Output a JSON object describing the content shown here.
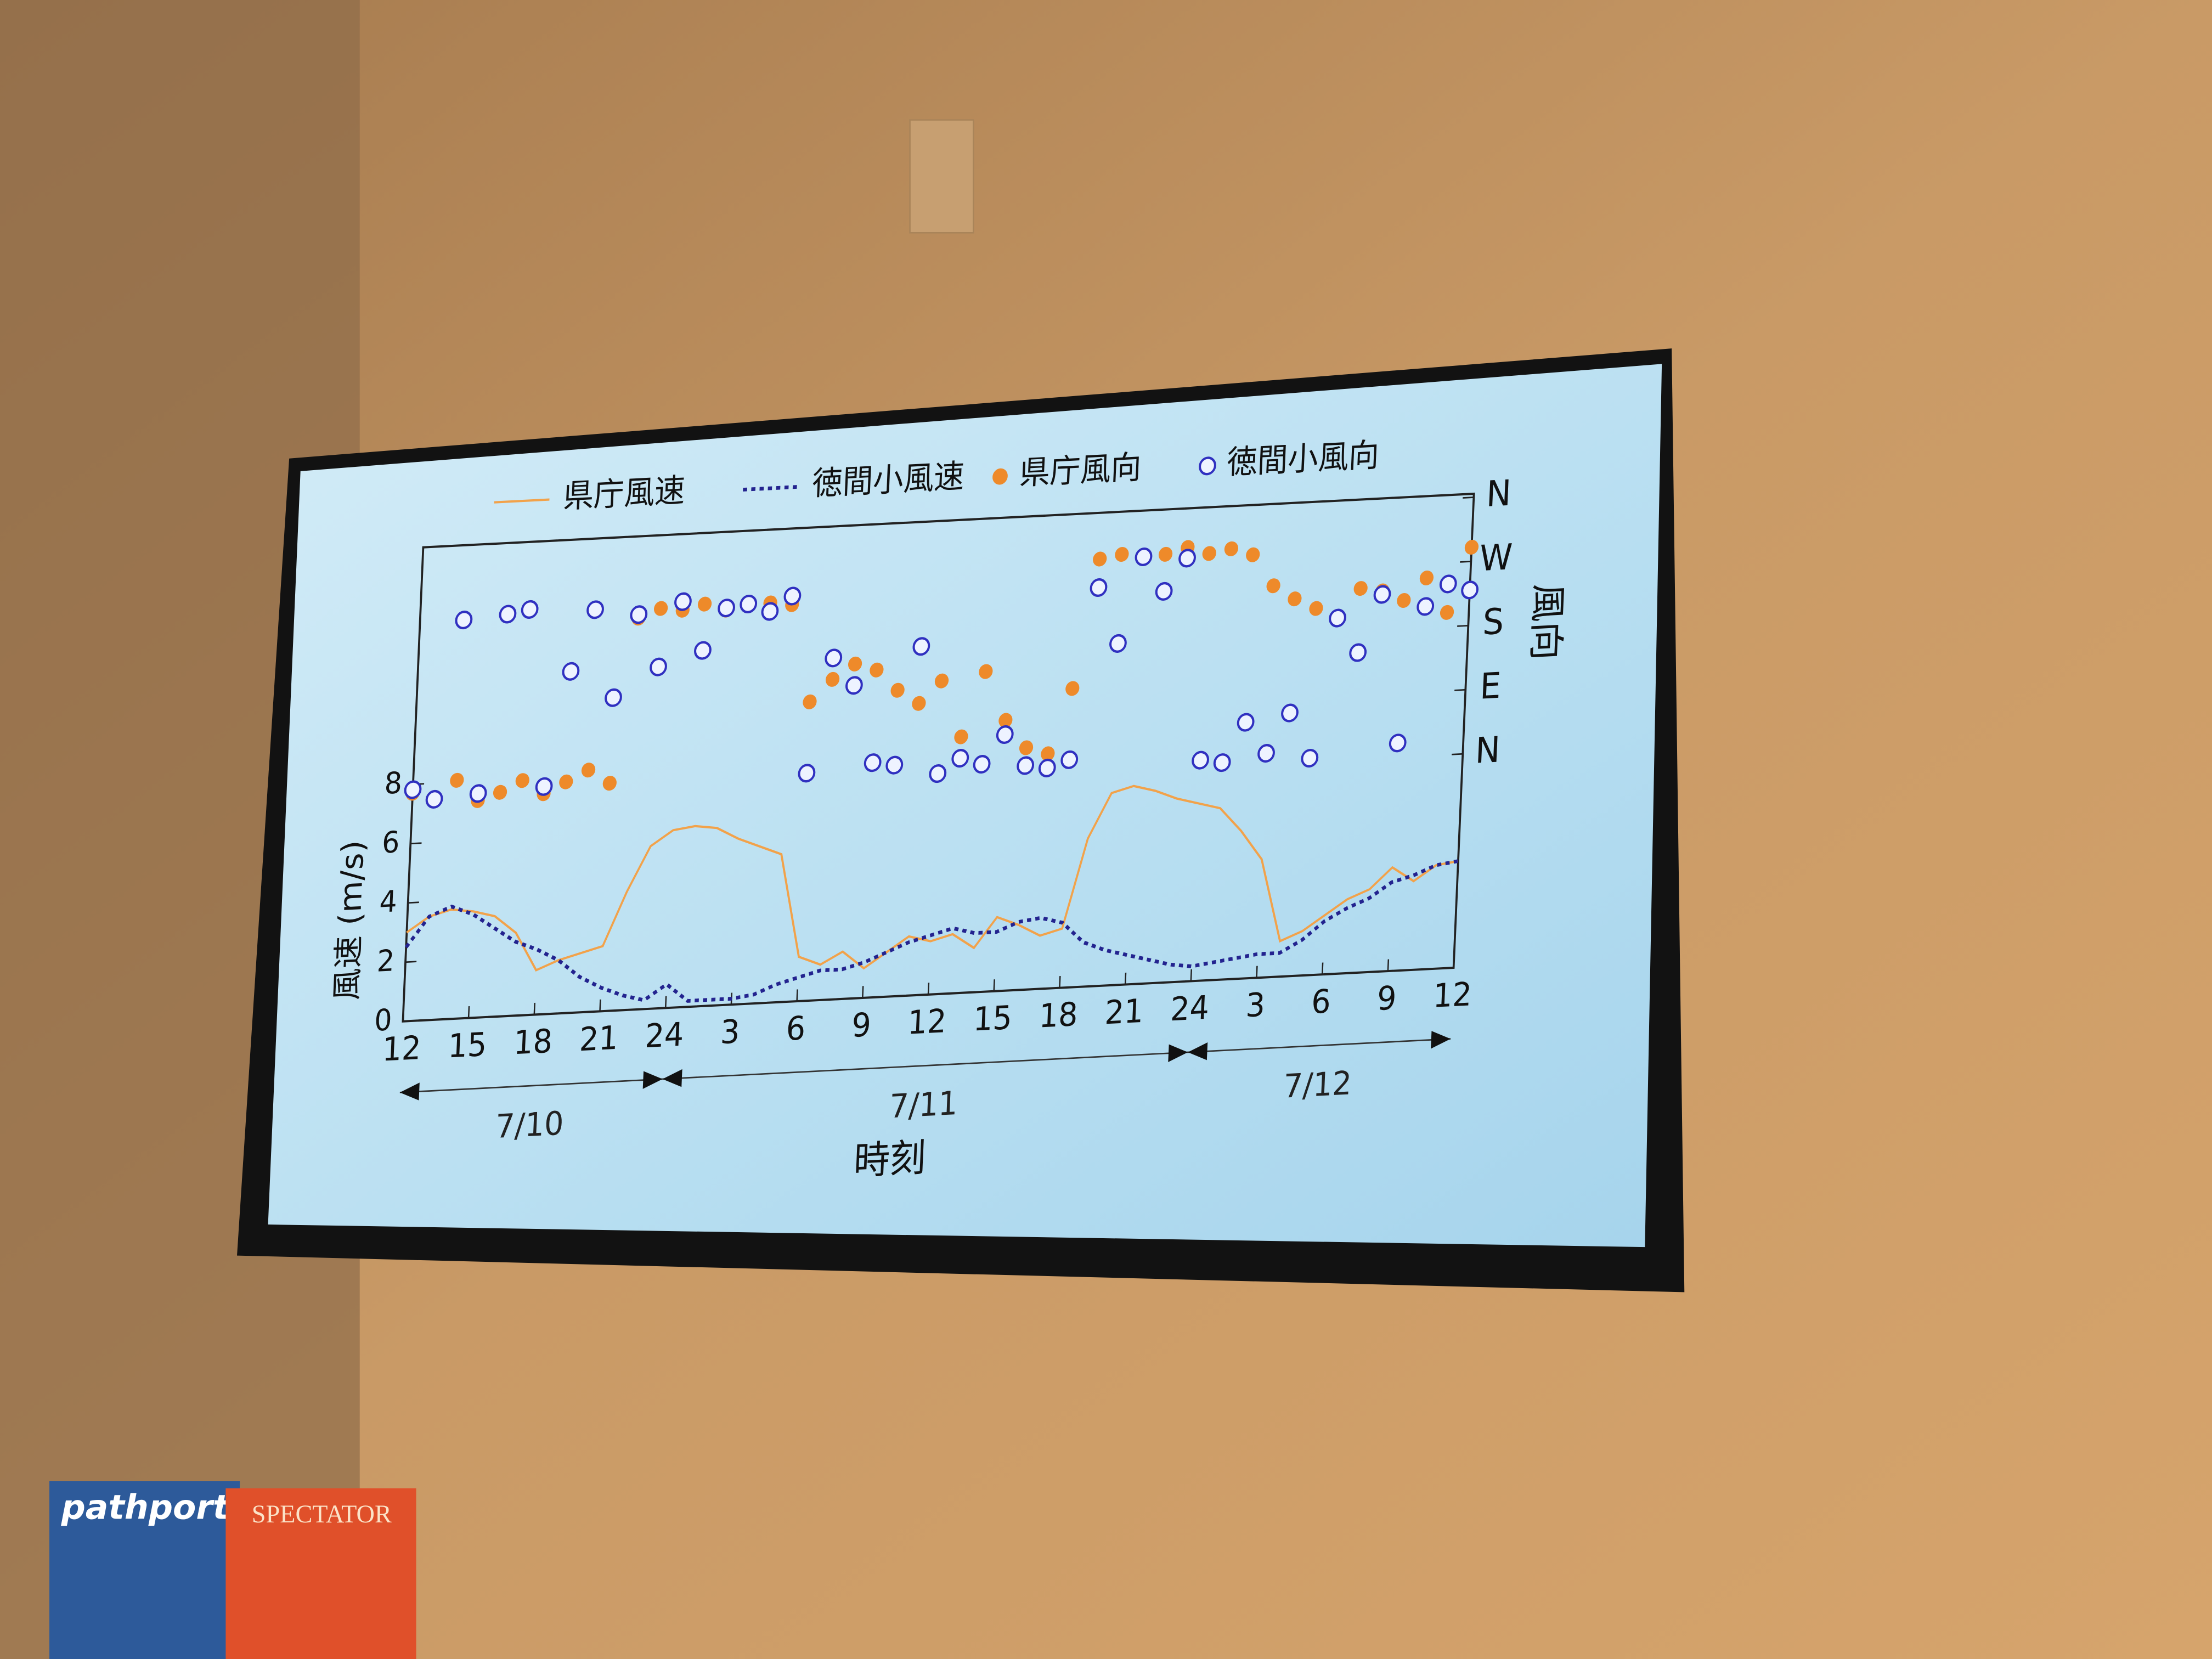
{
  "chart_data": [
    {
      "type": "line",
      "x_label": "時刻",
      "y_label": "風速 (m/s)",
      "x": [
        0,
        1,
        2,
        3,
        4,
        5,
        6,
        7,
        8,
        9,
        10,
        11,
        12,
        13,
        14,
        15,
        16,
        17,
        18,
        19,
        20,
        21,
        22,
        23,
        24,
        25,
        26,
        27,
        28,
        29,
        30,
        31,
        32,
        33,
        34,
        35,
        36,
        37,
        38,
        39,
        40,
        41,
        42,
        43,
        44,
        45,
        46,
        47,
        48
      ],
      "xlim": [
        0,
        48
      ],
      "xticks": [
        {
          "value": 0,
          "label": "12"
        },
        {
          "value": 3,
          "label": "15"
        },
        {
          "value": 6,
          "label": "18"
        },
        {
          "value": 9,
          "label": "21"
        },
        {
          "value": 12,
          "label": "24"
        },
        {
          "value": 15,
          "label": "3"
        },
        {
          "value": 18,
          "label": "6"
        },
        {
          "value": 21,
          "label": "9"
        },
        {
          "value": 24,
          "label": "12"
        },
        {
          "value": 27,
          "label": "15"
        },
        {
          "value": 30,
          "label": "18"
        },
        {
          "value": 33,
          "label": "21"
        },
        {
          "value": 36,
          "label": "24"
        },
        {
          "value": 39,
          "label": "3"
        },
        {
          "value": 42,
          "label": "6"
        },
        {
          "value": 45,
          "label": "9"
        },
        {
          "value": 48,
          "label": "12"
        }
      ],
      "ylim": [
        0,
        16
      ],
      "yticks": [
        0,
        2,
        4,
        6,
        8
      ],
      "date_spans": [
        {
          "label": "7/10",
          "from": 0,
          "to": 12
        },
        {
          "label": "7/11",
          "from": 12,
          "to": 36
        },
        {
          "label": "7/12",
          "from": 36,
          "to": 48
        }
      ],
      "series": [
        {
          "name": "県庁風速",
          "color": "#f2a24a",
          "style": "solid",
          "values": [
            3,
            3.5,
            3.7,
            3.6,
            3.4,
            2.8,
            1.5,
            1.8,
            2,
            2.2,
            4,
            5.5,
            6,
            6.1,
            6,
            5.6,
            5.3,
            5,
            1.5,
            1.2,
            1.6,
            1,
            1.5,
            2,
            1.8,
            2,
            1.5,
            2.5,
            2.2,
            1.8,
            2,
            5,
            6.5,
            6.7,
            6.5,
            6.2,
            6,
            5.8,
            5,
            4,
            1.2,
            1.5,
            2,
            2.5,
            2.8,
            3.5,
            3,
            3.5,
            3.6
          ]
        },
        {
          "name": "徳間小風速",
          "color": "#23238f",
          "style": "dotted",
          "values": [
            2.5,
            3.5,
            3.8,
            3.5,
            3,
            2.5,
            2.2,
            1.8,
            1.2,
            0.8,
            0.5,
            0.3,
            0.8,
            0.2,
            0.2,
            0.2,
            0.3,
            0.6,
            0.8,
            1,
            1,
            1.2,
            1.5,
            1.8,
            2,
            2.2,
            2,
            2,
            2.3,
            2.4,
            2.2,
            1.5,
            1.2,
            1,
            0.8,
            0.6,
            0.5,
            0.6,
            0.7,
            0.8,
            0.8,
            1.2,
            1.8,
            2.2,
            2.5,
            3,
            3.2,
            3.5,
            3.6
          ]
        }
      ]
    },
    {
      "type": "scatter",
      "y_label": "風向",
      "axis_side": "right",
      "x": [
        0,
        1,
        2,
        3,
        4,
        5,
        6,
        7,
        8,
        9,
        10,
        11,
        12,
        13,
        14,
        15,
        16,
        17,
        18,
        19,
        20,
        21,
        22,
        23,
        24,
        25,
        26,
        27,
        28,
        29,
        30,
        31,
        32,
        33,
        34,
        35,
        36,
        37,
        38,
        39,
        40,
        41,
        42,
        43,
        44,
        45,
        46,
        47,
        48
      ],
      "xlim": [
        0,
        48
      ],
      "ylim": [
        -300,
        365
      ],
      "yticks": [
        {
          "value": 0,
          "label": "N"
        },
        {
          "value": 90,
          "label": "E"
        },
        {
          "value": 180,
          "label": "S"
        },
        {
          "value": 270,
          "label": "W"
        },
        {
          "value": 360,
          "label": "N"
        }
      ],
      "series": [
        {
          "name": "県庁風向",
          "color": "#ee8a2a",
          "marker": "filled",
          "values": [
            20,
            10,
            35,
            5,
            15,
            30,
            10,
            25,
            40,
            20,
            250,
            262,
            258,
            265,
            255,
            260,
            262,
            258,
            120,
            150,
            170,
            160,
            130,
            110,
            140,
            60,
            150,
            80,
            40,
            30,
            120,
            300,
            305,
            298,
            302,
            310,
            300,
            305,
            295,
            250,
            230,
            215,
            200,
            240,
            235,
            220,
            250,
            200,
            290
          ]
        },
        {
          "name": "徳間小風向",
          "color": "#3030c0",
          "marker": "hollow",
          "values": [
            25,
            10,
            260,
            15,
            265,
            270,
            20,
            180,
            265,
            140,
            255,
            180,
            270,
            200,
            258,
            262,
            250,
            270,
            20,
            180,
            140,
            30,
            25,
            190,
            10,
            30,
            20,
            60,
            15,
            10,
            20,
            260,
            180,
            300,
            250,
            295,
            10,
            5,
            60,
            15,
            70,
            5,
            200,
            150,
            230,
            20,
            210,
            240,
            230
          ]
        }
      ]
    }
  ],
  "scene": {
    "books": [
      "pathports",
      "SPECTATOR"
    ]
  }
}
